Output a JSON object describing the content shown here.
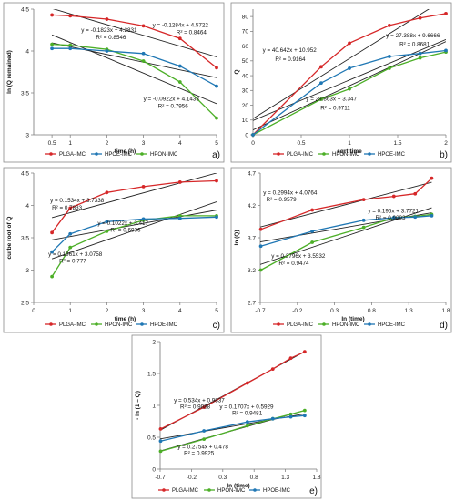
{
  "colors": {
    "PLGA": "#d62728",
    "HPON": "#4caf27",
    "HPOE": "#1f77b4",
    "trend": "#222222"
  },
  "chart_data": [
    {
      "id": "a",
      "type": "line",
      "panel_label": "a)",
      "xlabel": "time (h)",
      "ylabel": "ln (Q remained)",
      "xlim": [
        0,
        5
      ],
      "ylim": [
        3,
        4.5
      ],
      "xticks": [
        {
          "v": 0.5,
          "t": "0.5"
        },
        {
          "v": 1,
          "t": "1"
        },
        {
          "v": 2,
          "t": "2"
        },
        {
          "v": 3,
          "t": "3"
        },
        {
          "v": 4,
          "t": "4"
        },
        {
          "v": 5,
          "t": "5"
        }
      ],
      "yticks": [
        {
          "v": 3,
          "t": "3"
        },
        {
          "v": 3.5,
          "t": "3.5"
        },
        {
          "v": 4,
          "t": "4"
        },
        {
          "v": 4.5,
          "t": "4.5"
        }
      ],
      "series": [
        {
          "name": "PLGA-IMC",
          "color_key": "PLGA",
          "x": [
            0.5,
            1,
            2,
            3,
            4,
            5
          ],
          "y": [
            4.43,
            4.42,
            4.38,
            4.3,
            4.15,
            3.8
          ]
        },
        {
          "name": "HPON-IMC",
          "color_key": "HPON",
          "x": [
            0.5,
            1,
            2,
            3,
            4,
            5
          ],
          "y": [
            4.08,
            4.07,
            4.02,
            3.88,
            3.63,
            3.2
          ]
        },
        {
          "name": "HPOE-IMC",
          "color_key": "HPOE",
          "x": [
            0.5,
            1,
            2,
            3,
            4,
            5
          ],
          "y": [
            4.03,
            4.03,
            4.0,
            3.97,
            3.82,
            3.58
          ]
        }
      ],
      "trendlines": [
        {
          "m": -0.1284,
          "b": 4.5722,
          "x0": 0.5,
          "x1": 5
        },
        {
          "m": -0.1823,
          "b": 4.2831,
          "x0": 0.5,
          "x1": 5
        },
        {
          "m": -0.0922,
          "b": 4.1433,
          "x0": 0.5,
          "x1": 5
        }
      ],
      "legend": [
        {
          "label": "PLGA-IMC",
          "color_key": "PLGA"
        },
        {
          "label": "HPOE-IMC",
          "color_key": "HPOE"
        },
        {
          "label": "HPON-IMC",
          "color_key": "HPON"
        }
      ],
      "annotations": [
        {
          "text": "y = -0.1284x + 4.5722",
          "x": 3.25,
          "y": 4.29
        },
        {
          "text": "R² = 0.8464",
          "x": 3.9,
          "y": 4.2
        },
        {
          "text": "y = -0.1823x + 4.2831",
          "x": 1.3,
          "y": 4.23
        },
        {
          "text": "R² = 0.8546",
          "x": 1.7,
          "y": 4.14
        },
        {
          "text": "y = -0.0922x + 4.1433",
          "x": 3.0,
          "y": 3.41
        },
        {
          "text": "R² = 0.7956",
          "x": 3.4,
          "y": 3.32
        }
      ]
    },
    {
      "id": "b",
      "type": "line",
      "panel_label": "b)",
      "xlabel": "sqrt time",
      "ylabel": "Q",
      "xlim": [
        0,
        2
      ],
      "ylim": [
        0,
        85
      ],
      "xticks": [
        {
          "v": 0,
          "t": "0"
        },
        {
          "v": 0.5,
          "t": "0.5"
        },
        {
          "v": 1,
          "t": "1"
        },
        {
          "v": 1.5,
          "t": "1.5"
        },
        {
          "v": 2,
          "t": "2"
        }
      ],
      "yticks": [
        {
          "v": 0,
          "t": "0"
        },
        {
          "v": 10,
          "t": "10"
        },
        {
          "v": 20,
          "t": "20"
        },
        {
          "v": 30,
          "t": "30"
        },
        {
          "v": 40,
          "t": "40"
        },
        {
          "v": 50,
          "t": "50"
        },
        {
          "v": 60,
          "t": "60"
        },
        {
          "v": 70,
          "t": "70"
        },
        {
          "v": 80,
          "t": "80"
        }
      ],
      "series": [
        {
          "name": "PLGA-IMC",
          "color_key": "PLGA",
          "x": [
            0,
            0.707,
            1,
            1.414,
            1.732,
            2
          ],
          "y": [
            0,
            46,
            62,
            74,
            79,
            82
          ]
        },
        {
          "name": "HPON-IMC",
          "color_key": "HPON",
          "x": [
            0,
            0.707,
            1,
            1.414,
            1.732,
            2
          ],
          "y": [
            0,
            24,
            31,
            45,
            52,
            56
          ]
        },
        {
          "name": "HPOE-IMC",
          "color_key": "HPOE",
          "x": [
            0,
            0.707,
            1,
            1.414,
            1.732,
            2
          ],
          "y": [
            0,
            35,
            45,
            53,
            55,
            57
          ]
        }
      ],
      "trendlines": [
        {
          "m": 40.642,
          "b": 10.952,
          "x0": 0,
          "x1": 2
        },
        {
          "m": 27.388,
          "b": 9.6666,
          "x0": 0,
          "x1": 2
        },
        {
          "m": 29.863,
          "b": 3.347,
          "x0": 0,
          "x1": 2
        }
      ],
      "legend": [
        {
          "label": "PLGA-IMC",
          "color_key": "PLGA"
        },
        {
          "label": "HPON-IMC",
          "color_key": "HPON"
        },
        {
          "label": "HPOE-IMC",
          "color_key": "HPOE"
        }
      ],
      "annotations": [
        {
          "text": "y = 40.642x + 10.952",
          "x": 0.1,
          "y": 56
        },
        {
          "text": "R² = 0.9164",
          "x": 0.23,
          "y": 50
        },
        {
          "text": "y = 27.388x + 9.6666",
          "x": 1.38,
          "y": 66
        },
        {
          "text": "R² = 0.8681",
          "x": 1.52,
          "y": 60
        },
        {
          "text": "y = 29.863x + 3.347",
          "x": 0.55,
          "y": 23
        },
        {
          "text": "R² = 0.9711",
          "x": 0.7,
          "y": 17
        }
      ]
    },
    {
      "id": "c",
      "type": "line",
      "panel_label": "c)",
      "xlabel": "time (h)",
      "ylabel": "curbe root of Q",
      "xlim": [
        0,
        5
      ],
      "ylim": [
        2.5,
        4.5
      ],
      "xticks": [
        {
          "v": 0,
          "t": "0"
        },
        {
          "v": 1,
          "t": "1"
        },
        {
          "v": 2,
          "t": "2"
        },
        {
          "v": 3,
          "t": "3"
        },
        {
          "v": 4,
          "t": "4"
        },
        {
          "v": 5,
          "t": "5"
        }
      ],
      "yticks": [
        {
          "v": 2.5,
          "t": "2.5"
        },
        {
          "v": 3,
          "t": "3"
        },
        {
          "v": 3.5,
          "t": "3.5"
        },
        {
          "v": 4,
          "t": "4"
        },
        {
          "v": 4.5,
          "t": "4.5"
        }
      ],
      "series": [
        {
          "name": "PLGA-IMC",
          "color_key": "PLGA",
          "x": [
            0.5,
            1,
            2,
            3,
            4,
            5
          ],
          "y": [
            3.58,
            3.96,
            4.2,
            4.29,
            4.36,
            4.38
          ]
        },
        {
          "name": "HPON-IMC",
          "color_key": "HPON",
          "x": [
            0.5,
            1,
            2,
            3,
            4,
            5
          ],
          "y": [
            2.9,
            3.35,
            3.6,
            3.77,
            3.84,
            3.84
          ]
        },
        {
          "name": "HPOE-IMC",
          "color_key": "HPOE",
          "x": [
            0.5,
            1,
            2,
            3,
            4,
            5
          ],
          "y": [
            3.28,
            3.56,
            3.75,
            3.79,
            3.8,
            3.82
          ]
        }
      ],
      "trendlines": [
        {
          "m": 0.1534,
          "b": 3.7338,
          "x0": 0.5,
          "x1": 5
        },
        {
          "m": 0.1022,
          "b": 3.417,
          "x0": 0.5,
          "x1": 5
        },
        {
          "m": 0.1961,
          "b": 3.0758,
          "x0": 0.5,
          "x1": 5
        }
      ],
      "legend": [
        {
          "label": "PLGA-IMC",
          "color_key": "PLGA"
        },
        {
          "label": "HPON-IMC",
          "color_key": "HPON"
        },
        {
          "label": "HPOE-IMC",
          "color_key": "HPOE"
        }
      ],
      "annotations": [
        {
          "text": "y = 0.1534x + 3.7338",
          "x": 0.45,
          "y": 4.05
        },
        {
          "text": "R² = 0.7833",
          "x": 0.5,
          "y": 3.94
        },
        {
          "text": "y = 0.1022x + 3.417",
          "x": 1.75,
          "y": 3.7
        },
        {
          "text": "R² = 0.6936",
          "x": 2.1,
          "y": 3.59
        },
        {
          "text": "y = 0.1961x + 3.0758",
          "x": 0.4,
          "y": 3.22
        },
        {
          "text": "R² = 0.777",
          "x": 0.7,
          "y": 3.11
        }
      ]
    },
    {
      "id": "d",
      "type": "line",
      "panel_label": "d)",
      "xlabel": "ln (time)",
      "ylabel": "ln (Q)",
      "xlim": [
        -0.7,
        1.8
      ],
      "ylim": [
        2.7,
        4.7
      ],
      "xticks": [
        {
          "v": -0.7,
          "t": "-0.7"
        },
        {
          "v": -0.2,
          "t": "-0.2"
        },
        {
          "v": 0.3,
          "t": "0.3"
        },
        {
          "v": 0.8,
          "t": "0.8"
        },
        {
          "v": 1.3,
          "t": "1.3"
        },
        {
          "v": 1.8,
          "t": "1.8"
        }
      ],
      "yticks": [
        {
          "v": 2.7,
          "t": "2.7"
        },
        {
          "v": 3.2,
          "t": "3.2"
        },
        {
          "v": 3.7,
          "t": "3.7"
        },
        {
          "v": 4.2,
          "t": "4.2"
        },
        {
          "v": 4.7,
          "t": "4.7"
        }
      ],
      "series": [
        {
          "name": "PLGA-IMC",
          "color_key": "PLGA",
          "x": [
            -0.693,
            0,
            0.693,
            1.099,
            1.386,
            1.609
          ],
          "y": [
            3.83,
            4.13,
            4.29,
            4.34,
            4.38,
            4.62
          ]
        },
        {
          "name": "HPON-IMC",
          "color_key": "HPON",
          "x": [
            -0.693,
            0,
            0.693,
            1.099,
            1.386,
            1.609
          ],
          "y": [
            3.2,
            3.63,
            3.86,
            4.01,
            4.03,
            4.06
          ]
        },
        {
          "name": "HPOE-IMC",
          "color_key": "HPOE",
          "x": [
            -0.693,
            0,
            0.693,
            1.099,
            1.386,
            1.609
          ],
          "y": [
            3.57,
            3.8,
            3.97,
            4.01,
            4.02,
            4.04
          ]
        }
      ],
      "trendlines": [
        {
          "m": 0.2994,
          "b": 4.0764,
          "x0": -0.7,
          "x1": 1.609
        },
        {
          "m": 0.195,
          "b": 3.7721,
          "x0": -0.7,
          "x1": 1.609
        },
        {
          "m": 0.3796,
          "b": 3.5532,
          "x0": -0.7,
          "x1": 1.609
        }
      ],
      "legend": [
        {
          "label": "PLGA-IMC",
          "color_key": "PLGA"
        },
        {
          "label": "HPON-IMC",
          "color_key": "HPON"
        },
        {
          "label": "HPOE-IMC",
          "color_key": "HPOE"
        }
      ],
      "annotations": [
        {
          "text": "y = 0.2994x + 4.0764",
          "x": -0.66,
          "y": 4.37
        },
        {
          "text": "R² = 0.9579",
          "x": -0.62,
          "y": 4.26
        },
        {
          "text": "y = 0.195x + 3.7721",
          "x": 0.75,
          "y": 4.09
        },
        {
          "text": "R² = 0.9093",
          "x": 0.85,
          "y": 3.98
        },
        {
          "text": "y = 0.3796x + 3.5532",
          "x": -0.55,
          "y": 3.39
        },
        {
          "text": "R² = 0.9474",
          "x": -0.45,
          "y": 3.28
        }
      ]
    },
    {
      "id": "e",
      "type": "line",
      "panel_label": "e)",
      "xlabel": "ln (time)",
      "ylabel": "- ln (1 – Q)",
      "xlim": [
        -0.7,
        1.8
      ],
      "ylim": [
        0,
        2
      ],
      "xticks": [
        {
          "v": -0.7,
          "t": "-0.7"
        },
        {
          "v": -0.2,
          "t": "-0.2"
        },
        {
          "v": 0.3,
          "t": "0.3"
        },
        {
          "v": 0.8,
          "t": "0.8"
        },
        {
          "v": 1.3,
          "t": "1.3"
        },
        {
          "v": 1.8,
          "t": "1.8"
        }
      ],
      "yticks": [
        {
          "v": 0,
          "t": "0"
        },
        {
          "v": 0.5,
          "t": "0.5"
        },
        {
          "v": 1,
          "t": "1"
        },
        {
          "v": 1.5,
          "t": "1.5"
        },
        {
          "v": 2,
          "t": "2"
        }
      ],
      "series": [
        {
          "name": "PLGA-IMC",
          "color_key": "PLGA",
          "x": [
            -0.693,
            0,
            0.693,
            1.099,
            1.386,
            1.609
          ],
          "y": [
            0.63,
            0.97,
            1.35,
            1.57,
            1.74,
            1.84
          ]
        },
        {
          "name": "HPON-IMC",
          "color_key": "HPON",
          "x": [
            -0.693,
            0,
            0.693,
            1.099,
            1.386,
            1.609
          ],
          "y": [
            0.28,
            0.47,
            0.68,
            0.79,
            0.86,
            0.92
          ]
        },
        {
          "name": "HPOE-IMC",
          "color_key": "HPOE",
          "x": [
            -0.693,
            0,
            0.693,
            1.099,
            1.386,
            1.609
          ],
          "y": [
            0.44,
            0.6,
            0.74,
            0.79,
            0.82,
            0.84
          ]
        }
      ],
      "trendlines": [
        {
          "m": 0.534,
          "b": 0.9837,
          "x0": -0.7,
          "x1": 1.609
        },
        {
          "m": 0.1707,
          "b": 0.5929,
          "x0": -0.7,
          "x1": 1.609
        },
        {
          "m": 0.2754,
          "b": 0.478,
          "x0": -0.7,
          "x1": 1.609
        }
      ],
      "legend": [
        {
          "label": "PLGA-IMC",
          "color_key": "PLGA"
        },
        {
          "label": "HPON-IMC",
          "color_key": "HPON"
        },
        {
          "label": "HPOE-IMC",
          "color_key": "HPOE"
        }
      ],
      "annotations": [
        {
          "text": "y = 0.534x + 0.9837",
          "x": -0.48,
          "y": 1.05
        },
        {
          "text": "R² = 0.9988",
          "x": -0.38,
          "y": 0.95
        },
        {
          "text": "y = 0.1707x + 0.5929",
          "x": 0.25,
          "y": 0.95
        },
        {
          "text": "R² = 0.9481",
          "x": 0.45,
          "y": 0.85
        },
        {
          "text": "y = 0.2754x + 0.478",
          "x": -0.42,
          "y": 0.32
        },
        {
          "text": "R² = 0.9925",
          "x": -0.32,
          "y": 0.22
        }
      ]
    }
  ]
}
